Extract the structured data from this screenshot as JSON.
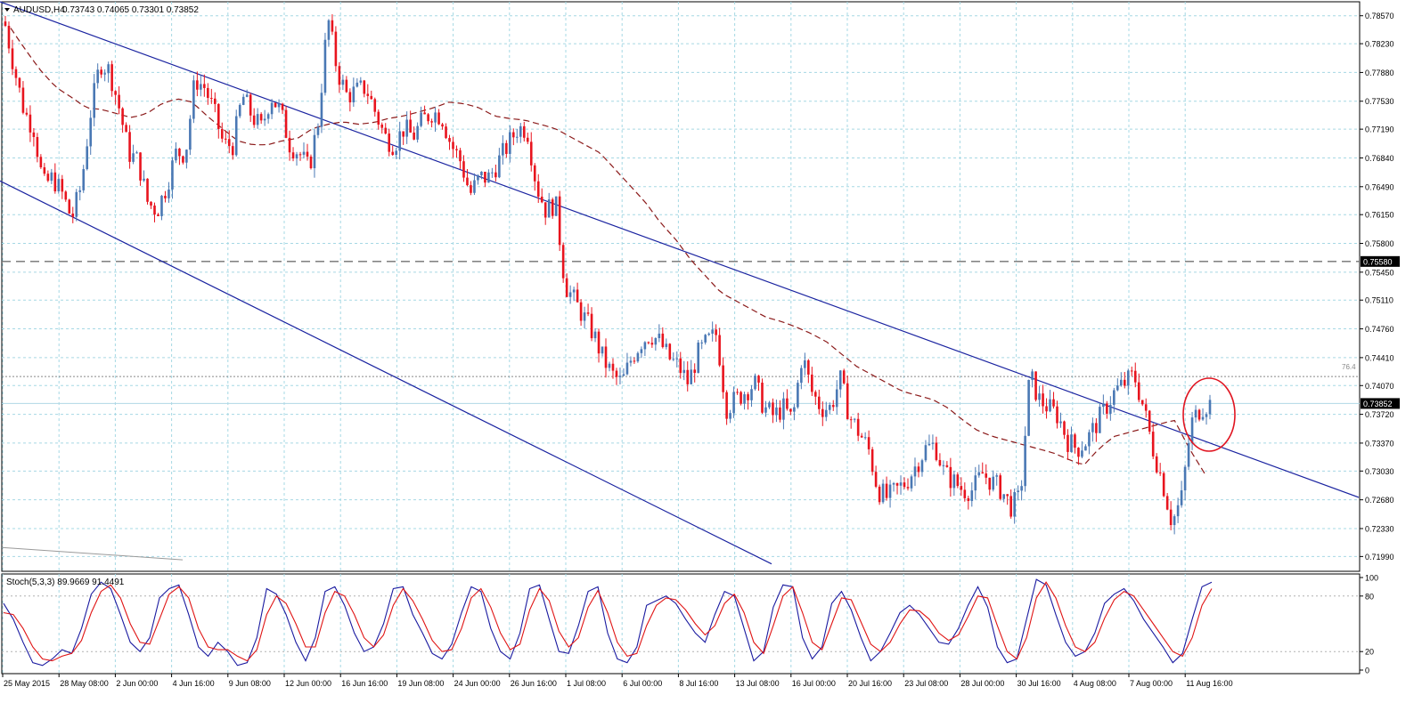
{
  "header": {
    "symbol": "AUDUSD,H4",
    "ohlc": "0.73743 0.74065 0.73301 0.73852"
  },
  "colors": {
    "bull": "#4a78b4",
    "bear": "#e8141e",
    "ma": "#8b1a1a",
    "channel": "#1a23a0",
    "grid": "#a6d8e4",
    "stoch_main": "#1a1aa0",
    "stoch_signal": "#e01414",
    "circle": "#e01420",
    "dashed_level": "#707070"
  },
  "chart_data": [
    {
      "type": "candlestick",
      "title": "AUDUSD,H4",
      "ylim": [
        0.7181,
        0.7874
      ],
      "ylabels": [
        "0.78570",
        "0.78230",
        "0.77880",
        "0.77530",
        "0.77190",
        "0.76840",
        "0.76490",
        "0.76150",
        "0.75800",
        "0.75450",
        "0.75110",
        "0.74760",
        "0.74410",
        "0.74070",
        "0.73720",
        "0.73370",
        "0.73030",
        "0.72680",
        "0.72330",
        "0.71990"
      ],
      "xlabels": [
        "25 May 2015",
        "28 May 08:00",
        "2 Jun 00:00",
        "4 Jun 16:00",
        "9 Jun 08:00",
        "12 Jun 00:00",
        "16 Jun 16:00",
        "19 Jun 08:00",
        "24 Jun 00:00",
        "26 Jun 16:00",
        "1 Jul 08:00",
        "6 Jul 00:00",
        "8 Jul 16:00",
        "13 Jul 08:00",
        "16 Jul 00:00",
        "20 Jul 16:00",
        "23 Jul 08:00",
        "28 Jul 00:00",
        "30 Jul 16:00",
        "4 Aug 08:00",
        "7 Aug 00:00",
        "11 Aug 16:00"
      ],
      "close_path": [
        0.7845,
        0.779,
        0.774,
        0.772,
        0.765,
        0.766,
        0.764,
        0.761,
        0.765,
        0.774,
        0.78,
        0.779,
        0.7745,
        0.769,
        0.768,
        0.763,
        0.762,
        0.765,
        0.769,
        0.769,
        0.778,
        0.777,
        0.774,
        0.77,
        0.77,
        0.776,
        0.7735,
        0.772,
        0.776,
        0.774,
        0.77,
        0.769,
        0.767,
        0.773,
        0.7855,
        0.779,
        0.776,
        0.7765,
        0.777,
        0.774,
        0.771,
        0.77,
        0.772,
        0.771,
        0.773,
        0.774,
        0.7735,
        0.77,
        0.768,
        0.764,
        0.766,
        0.766,
        0.768,
        0.77,
        0.772,
        0.772,
        0.765,
        0.762,
        0.763,
        0.753,
        0.751,
        0.749,
        0.747,
        0.744,
        0.742,
        0.741,
        0.744,
        0.746,
        0.747,
        0.746,
        0.744,
        0.743,
        0.741,
        0.7445,
        0.746,
        0.747,
        0.738,
        0.739,
        0.74,
        0.741,
        0.738,
        0.737,
        0.738,
        0.7365,
        0.7445,
        0.74,
        0.738,
        0.738,
        0.7415,
        0.737,
        0.735,
        0.733,
        0.728,
        0.727,
        0.728,
        0.729,
        0.731,
        0.733,
        0.7335,
        0.73,
        0.729,
        0.728,
        0.728,
        0.73,
        0.729,
        0.728,
        0.726,
        0.727,
        0.742,
        0.739,
        0.738,
        0.737,
        0.734,
        0.733,
        0.734,
        0.736,
        0.738,
        0.74,
        0.741,
        0.742,
        0.738,
        0.733,
        0.729,
        0.724,
        0.727,
        0.736,
        0.738,
        0.7385
      ],
      "moving_average_path": [
        0.7842,
        0.7815,
        0.779,
        0.777,
        0.7758,
        0.7745,
        0.7743,
        0.7738,
        0.7733,
        0.7738,
        0.775,
        0.7756,
        0.7752,
        0.7735,
        0.772,
        0.7705,
        0.77,
        0.77,
        0.7705,
        0.7708,
        0.772,
        0.7725,
        0.7728,
        0.7725,
        0.7727,
        0.7732,
        0.7735,
        0.774,
        0.7745,
        0.7752,
        0.775,
        0.7745,
        0.7735,
        0.7732,
        0.773,
        0.7725,
        0.772,
        0.771,
        0.77,
        0.769,
        0.767,
        0.765,
        0.763,
        0.7605,
        0.7585,
        0.756,
        0.754,
        0.752,
        0.751,
        0.75,
        0.749,
        0.7485,
        0.7478,
        0.747,
        0.746,
        0.7445,
        0.743,
        0.742,
        0.741,
        0.74,
        0.7395,
        0.739,
        0.738,
        0.7365,
        0.7352,
        0.7345,
        0.734,
        0.7335,
        0.733,
        0.7325,
        0.7317,
        0.731,
        0.733,
        0.7345,
        0.735,
        0.7355,
        0.736,
        0.7365,
        0.733,
        0.73
      ],
      "current_price": "0.73852",
      "horizontal_level": "0.75580",
      "fib_label": "76.4",
      "fib_level": 0.7418,
      "channel_upper": [
        [
          0,
          0.7874
        ],
        [
          1525,
          0.7271
        ]
      ],
      "channel_lower": [
        [
          0,
          0.7656
        ],
        [
          866,
          0.719
        ]
      ]
    },
    {
      "type": "line",
      "title": "Stoch(5,3,3) 89.9669 91.4491",
      "ylim": [
        0,
        100
      ],
      "ylabels": [
        "100",
        "80",
        "20",
        "0"
      ],
      "series": [
        {
          "name": "main",
          "values": [
            72,
            55,
            30,
            8,
            5,
            12,
            22,
            18,
            45,
            82,
            95,
            88,
            60,
            30,
            20,
            35,
            78,
            88,
            92,
            60,
            25,
            15,
            30,
            20,
            5,
            8,
            35,
            88,
            82,
            60,
            30,
            10,
            35,
            85,
            90,
            70,
            40,
            20,
            25,
            50,
            88,
            90,
            60,
            40,
            18,
            12,
            28,
            62,
            90,
            85,
            45,
            20,
            12,
            40,
            88,
            92,
            55,
            20,
            18,
            48,
            85,
            90,
            40,
            12,
            8,
            25,
            70,
            75,
            80,
            72,
            55,
            40,
            30,
            60,
            85,
            80,
            45,
            10,
            20,
            68,
            92,
            90,
            35,
            12,
            25,
            72,
            85,
            65,
            35,
            10,
            20,
            40,
            62,
            70,
            60,
            45,
            30,
            28,
            45,
            70,
            90,
            68,
            25,
            8,
            12,
            55,
            98,
            92,
            60,
            30,
            15,
            20,
            40,
            72,
            82,
            88,
            75,
            55,
            40,
            25,
            8,
            18,
            55,
            90,
            95
          ]
        },
        {
          "name": "signal",
          "values": [
            62,
            60,
            45,
            25,
            12,
            10,
            15,
            18,
            32,
            62,
            85,
            92,
            78,
            50,
            30,
            28,
            55,
            82,
            90,
            78,
            45,
            25,
            22,
            22,
            15,
            10,
            22,
            60,
            80,
            72,
            50,
            25,
            25,
            62,
            85,
            80,
            60,
            35,
            25,
            38,
            70,
            88,
            75,
            55,
            32,
            20,
            22,
            45,
            78,
            88,
            68,
            40,
            22,
            28,
            65,
            88,
            75,
            42,
            25,
            35,
            68,
            86,
            62,
            30,
            15,
            18,
            48,
            70,
            78,
            76,
            65,
            50,
            38,
            48,
            72,
            82,
            62,
            30,
            18,
            48,
            80,
            90,
            62,
            30,
            22,
            50,
            78,
            76,
            52,
            28,
            20,
            30,
            50,
            65,
            64,
            55,
            40,
            32,
            38,
            58,
            80,
            78,
            48,
            20,
            12,
            35,
            78,
            95,
            78,
            48,
            25,
            20,
            30,
            56,
            76,
            85,
            80,
            65,
            50,
            35,
            20,
            15,
            35,
            70,
            88
          ]
        }
      ]
    }
  ]
}
